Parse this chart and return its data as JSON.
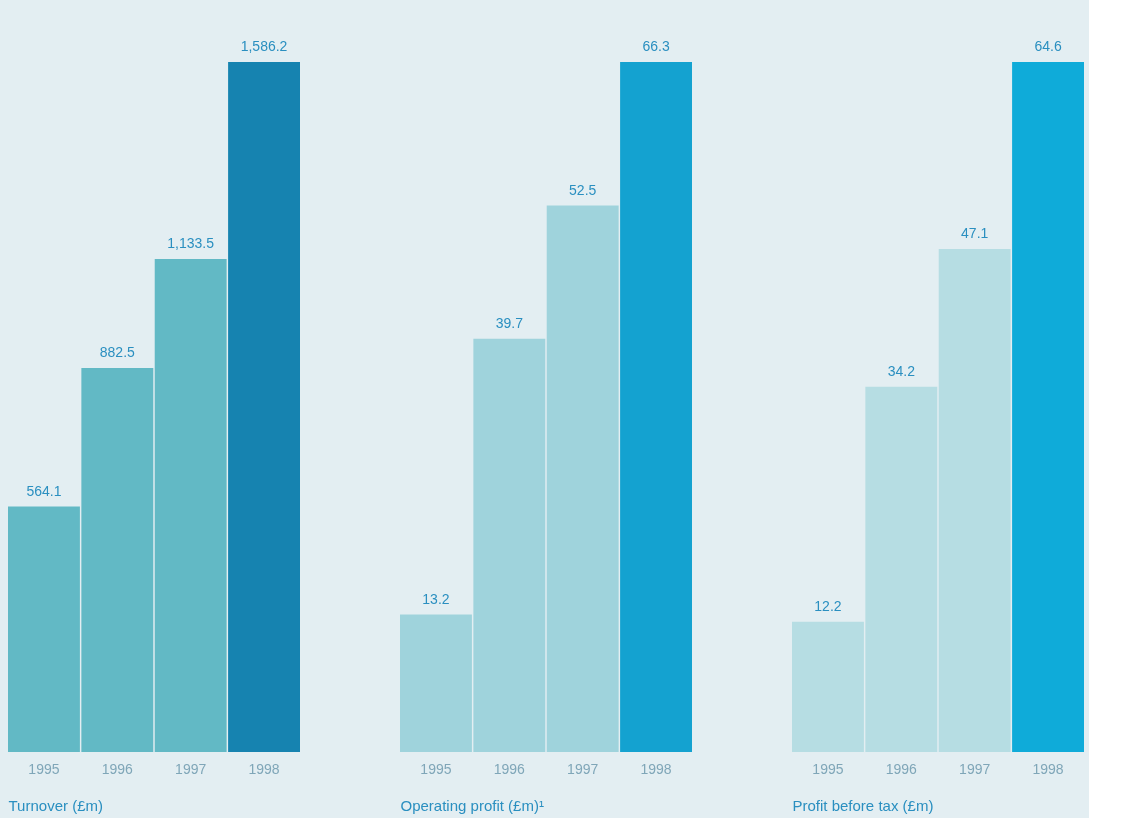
{
  "chart_data": [
    {
      "type": "bar",
      "xlabel": "Turnover (£m)",
      "categories": [
        "1995",
        "1996",
        "1997",
        "1998"
      ],
      "values": [
        564.1,
        882.5,
        1133.5,
        1586.2
      ],
      "value_labels": [
        "564.1",
        "882.5",
        "1,133.5",
        "1,586.2"
      ],
      "colors": [
        "#62b9c5",
        "#62b9c5",
        "#62b9c5",
        "#1683b0"
      ]
    },
    {
      "type": "bar",
      "xlabel": "Operating profit (£m)¹",
      "categories": [
        "1995",
        "1996",
        "1997",
        "1998"
      ],
      "values": [
        13.2,
        39.7,
        52.5,
        66.3
      ],
      "data_labels": true,
      "colors": [
        "#9fd3dc",
        "#9fd3dc",
        "#9fd3dc",
        "#14a2d0"
      ]
    },
    {
      "type": "bar",
      "xlabel": "Profit before tax (£m)",
      "categories": [
        "1995",
        "1996",
        "1997",
        "1998"
      ],
      "values": [
        12.2,
        34.2,
        47.1,
        64.6
      ],
      "data_labels": true,
      "colors": [
        "#b6dde3",
        "#b6dde3",
        "#b6dde3",
        "#0fabd9"
      ]
    }
  ]
}
